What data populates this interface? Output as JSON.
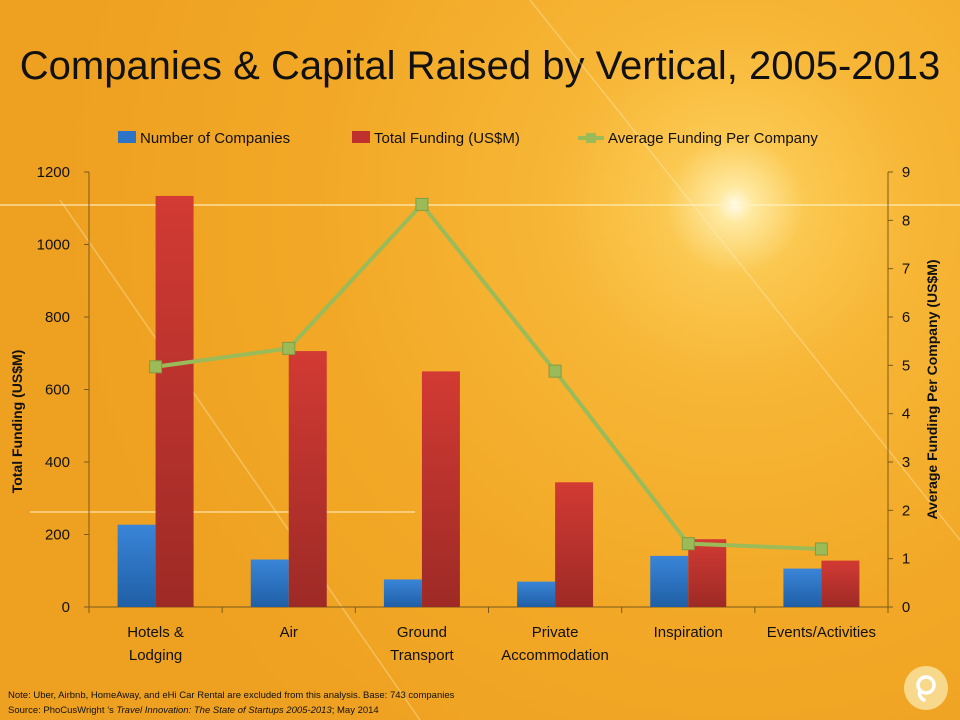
{
  "title": "Companies & Capital Raised by Vertical, 2005-2013",
  "notes": {
    "line1": "Note: Uber, Airbnb, HomeAway, and eHi Car Rental are excluded from this analysis. Base: 743 companies",
    "source_prefix": "Source: PhoCusWright ’s ",
    "source_title": "Travel Innovation: The State of Startups 2005-2013",
    "source_suffix": "; May 2014"
  },
  "logo_icon": "phocuswright-logo-icon",
  "chart_data": {
    "type": "bar",
    "categories": [
      [
        "Hotels &",
        "Lodging"
      ],
      [
        "Air"
      ],
      [
        "Ground",
        "Transport"
      ],
      [
        "Private",
        "Accommodation"
      ],
      [
        "Inspiration"
      ],
      [
        "Events/Activities"
      ]
    ],
    "series": [
      {
        "name": "Number of Companies",
        "type": "bar",
        "axis": "left",
        "color": "#2e74c6",
        "values": [
          227,
          131,
          76,
          70,
          141,
          106
        ]
      },
      {
        "name": "Total Funding (US$M)",
        "type": "bar",
        "axis": "left",
        "color": "#c0302c",
        "values": [
          1134,
          706,
          650,
          344,
          187,
          128
        ]
      },
      {
        "name": "Average Funding Per Company",
        "type": "line",
        "axis": "right",
        "color": "#9bbb59",
        "values": [
          4.97,
          5.35,
          8.33,
          4.88,
          1.31,
          1.2
        ]
      }
    ],
    "ylabel": "Total Funding (US$M)",
    "ylim": [
      0,
      1200
    ],
    "yticks": [
      0,
      200,
      400,
      600,
      800,
      1000,
      1200
    ],
    "y2label": "Average Funding Per Company (US$M)",
    "y2lim": [
      0,
      9
    ],
    "y2ticks": [
      0,
      1,
      2,
      3,
      4,
      5,
      6,
      7,
      8,
      9
    ],
    "legend_position": "top",
    "grid": false
  }
}
